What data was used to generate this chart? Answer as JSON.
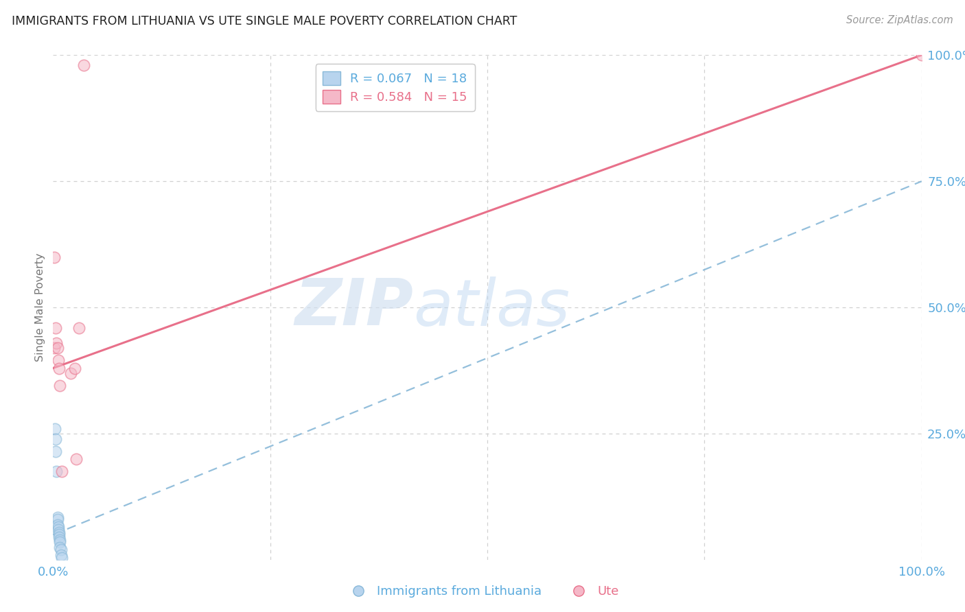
{
  "title": "IMMIGRANTS FROM LITHUANIA VS UTE SINGLE MALE POVERTY CORRELATION CHART",
  "source": "Source: ZipAtlas.com",
  "ylabel": "Single Male Poverty",
  "watermark_zip": "ZIP",
  "watermark_atlas": "atlas",
  "xlim": [
    0.0,
    1.0
  ],
  "ylim": [
    0.0,
    1.0
  ],
  "grid_color": "#d0d0d0",
  "background_color": "#ffffff",
  "blue_color": "#b8d4ee",
  "pink_color": "#f5b8c8",
  "blue_line_color": "#88b8d8",
  "pink_line_color": "#e8708a",
  "legend_blue_label": "R = 0.067   N = 18",
  "legend_pink_label": "R = 0.584   N = 15",
  "legend_bottom_blue": "Immigrants from Lithuania",
  "legend_bottom_pink": "Ute",
  "title_color": "#222222",
  "axis_label_color": "#777777",
  "tick_color_blue": "#5aaadd",
  "pink_line_color_legend": "#e8708a",
  "blue_scatter_x": [
    0.002,
    0.003,
    0.003,
    0.004,
    0.005,
    0.005,
    0.005,
    0.006,
    0.006,
    0.007,
    0.007,
    0.007,
    0.008,
    0.008,
    0.008,
    0.009,
    0.009,
    0.01
  ],
  "blue_scatter_y": [
    0.26,
    0.24,
    0.215,
    0.175,
    0.085,
    0.08,
    0.07,
    0.065,
    0.06,
    0.055,
    0.05,
    0.045,
    0.04,
    0.035,
    0.025,
    0.02,
    0.01,
    0.005
  ],
  "pink_scatter_x": [
    0.001,
    0.001,
    0.003,
    0.004,
    0.005,
    0.006,
    0.007,
    0.008,
    0.01,
    0.02,
    0.025,
    0.027,
    0.03,
    0.035,
    1.0
  ],
  "pink_scatter_y": [
    0.6,
    0.42,
    0.46,
    0.43,
    0.42,
    0.395,
    0.38,
    0.345,
    0.175,
    0.37,
    0.38,
    0.2,
    0.46,
    0.98,
    1.0
  ],
  "pink_line_x0": 0.0,
  "pink_line_x1": 1.0,
  "pink_line_y0": 0.38,
  "pink_line_y1": 1.0,
  "blue_line_x0": 0.0,
  "blue_line_x1": 1.0,
  "blue_line_y0": 0.05,
  "blue_line_y1": 0.75,
  "marker_size": 140,
  "marker_alpha": 0.55,
  "marker_lw": 1.2
}
